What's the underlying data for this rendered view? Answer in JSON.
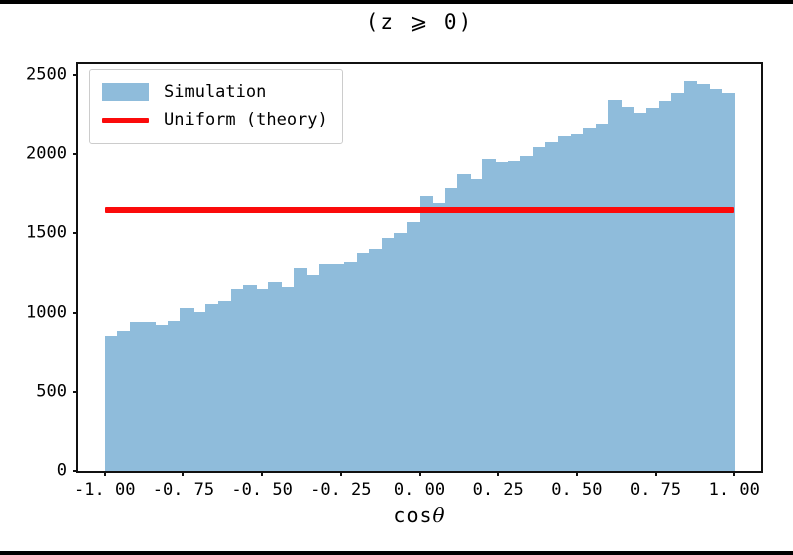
{
  "figure": {
    "background": "#ffffff",
    "frame_border_color": "#000000",
    "spine_color": "#111111"
  },
  "chart_data": {
    "type": "bar",
    "title": "(z ⩾ 0)",
    "xlabel": {
      "prefix": "cos",
      "symbol": "θ"
    },
    "ylabel": "",
    "grid": false,
    "xlim": [
      -1.085,
      1.085
    ],
    "ylim": [
      0,
      2570
    ],
    "bin_start": -1.0,
    "bin_width": 0.04,
    "counts": [
      850,
      885,
      940,
      940,
      925,
      950,
      1030,
      1005,
      1055,
      1075,
      1150,
      1175,
      1150,
      1195,
      1165,
      1280,
      1240,
      1305,
      1305,
      1320,
      1375,
      1400,
      1470,
      1505,
      1575,
      1735,
      1690,
      1790,
      1875,
      1845,
      1970,
      1950,
      1960,
      1990,
      2045,
      2080,
      2115,
      2125,
      2165,
      2190,
      2340,
      2300,
      2260,
      2295,
      2335,
      2390,
      2465,
      2445,
      2410,
      2390
    ],
    "uniform_theory": {
      "value": 1650,
      "x_start": -1.0,
      "x_end": 1.0
    },
    "x_ticks": [
      {
        "v": -1.0,
        "label": "-1. 00"
      },
      {
        "v": -0.75,
        "label": "-0. 75"
      },
      {
        "v": -0.5,
        "label": "-0. 50"
      },
      {
        "v": -0.25,
        "label": "-0. 25"
      },
      {
        "v": 0.0,
        "label": "0. 00"
      },
      {
        "v": 0.25,
        "label": "0. 25"
      },
      {
        "v": 0.5,
        "label": "0. 50"
      },
      {
        "v": 0.75,
        "label": "0. 75"
      },
      {
        "v": 1.0,
        "label": "1. 00"
      }
    ],
    "y_ticks": [
      {
        "v": 0,
        "label": "0"
      },
      {
        "v": 500,
        "label": "500"
      },
      {
        "v": 1000,
        "label": "1000"
      },
      {
        "v": 1500,
        "label": "1500"
      },
      {
        "v": 2000,
        "label": "2000"
      },
      {
        "v": 2500,
        "label": "2500"
      }
    ],
    "legend": {
      "position": "upper left",
      "entries": [
        {
          "label": "Simulation",
          "type": "patch",
          "color": "#8fbcdb"
        },
        {
          "label": "Uniform (theory)",
          "type": "line",
          "color": "#fb0b0b"
        }
      ]
    },
    "colors": {
      "bar_fill": "#8fbcdb",
      "theory_line": "#fb0b0b"
    }
  }
}
